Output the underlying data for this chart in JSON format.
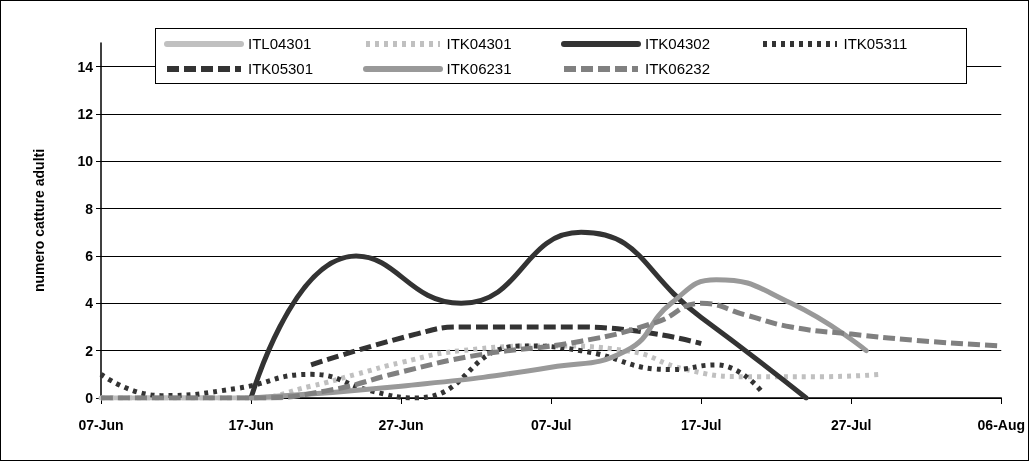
{
  "chart_data": {
    "type": "line",
    "ylabel": "numero catture adulti",
    "xlim": [
      "--06-07",
      "--08-06"
    ],
    "xticks": [
      {
        "value": "--06-07",
        "label": "07-Jun"
      },
      {
        "value": "--06-17",
        "label": "17-Jun"
      },
      {
        "value": "--06-27",
        "label": "27-Jun"
      },
      {
        "value": "--07-07",
        "label": "07-Jul"
      },
      {
        "value": "--07-17",
        "label": "17-Jul"
      },
      {
        "value": "--07-27",
        "label": "27-Jul"
      },
      {
        "value": "--08-06",
        "label": "06-Aug"
      }
    ],
    "ylim": [
      0,
      15
    ],
    "yticks": [
      0,
      2,
      4,
      6,
      8,
      10,
      12,
      14
    ],
    "grid": "y",
    "legend": "top",
    "marker": "none",
    "series": [
      {
        "name": "ITL04301",
        "color": "#c0c0c0",
        "line_style": "solid",
        "x": [
          "--06-07",
          "--06-13",
          "--06-19"
        ],
        "values": [
          0,
          0,
          0
        ]
      },
      {
        "name": "ITK04301",
        "color": "#c0c0c0",
        "line_style": "dotted",
        "x": [
          "--06-07",
          "--06-17",
          "--06-21",
          "--06-24",
          "--06-27",
          "--07-01",
          "--07-07",
          "--07-12",
          "--07-16",
          "--07-20",
          "--07-25",
          "--07-29"
        ],
        "values": [
          0,
          0,
          0.5,
          1,
          1.5,
          2,
          2.2,
          2,
          1.2,
          0.9,
          0.9,
          1
        ]
      },
      {
        "name": "ITK04302",
        "color": "#333333",
        "line_style": "solid",
        "x": [
          "--06-17",
          "--06-24",
          "--07-01",
          "--07-09",
          "--07-17",
          "--07-24"
        ],
        "values": [
          0,
          6,
          4,
          7,
          3.4,
          0
        ]
      },
      {
        "name": "ITK05311",
        "color": "#333333",
        "line_style": "dotted",
        "x": [
          "--06-07",
          "--06-11",
          "--06-16",
          "--06-21",
          "--06-25",
          "--06-28",
          "--07-05",
          "--07-09",
          "--07-15",
          "--07-18",
          "--07-21"
        ],
        "values": [
          1,
          0.1,
          0.4,
          1,
          0.3,
          0,
          2.2,
          2,
          1.2,
          1.4,
          0.3
        ]
      },
      {
        "name": "ITK05301",
        "color": "#333333",
        "line_style": "dashed",
        "x": [
          "--06-21",
          "--06-28",
          "--07-01",
          "--07-09",
          "--07-17"
        ],
        "values": [
          1.4,
          2.7,
          3,
          3,
          2.3
        ]
      },
      {
        "name": "ITK06231",
        "color": "#999999",
        "line_style": "solid",
        "x": [
          "--06-17",
          "--06-27",
          "--07-07",
          "--07-12",
          "--07-15",
          "--07-18",
          "--07-23",
          "--07-28"
        ],
        "values": [
          0,
          0.5,
          1.3,
          2,
          4,
          5,
          4,
          2
        ]
      },
      {
        "name": "ITK06232",
        "color": "#808080",
        "line_style": "dashed",
        "x": [
          "--06-07",
          "--06-17",
          "--06-22",
          "--06-27",
          "--07-02",
          "--07-09",
          "--07-14",
          "--07-17",
          "--07-20",
          "--07-23",
          "--07-27",
          "--08-01",
          "--08-06"
        ],
        "values": [
          0,
          0,
          0.3,
          1.1,
          1.8,
          2.4,
          3.2,
          4,
          3.5,
          3,
          2.7,
          2.4,
          2.2
        ]
      }
    ]
  }
}
